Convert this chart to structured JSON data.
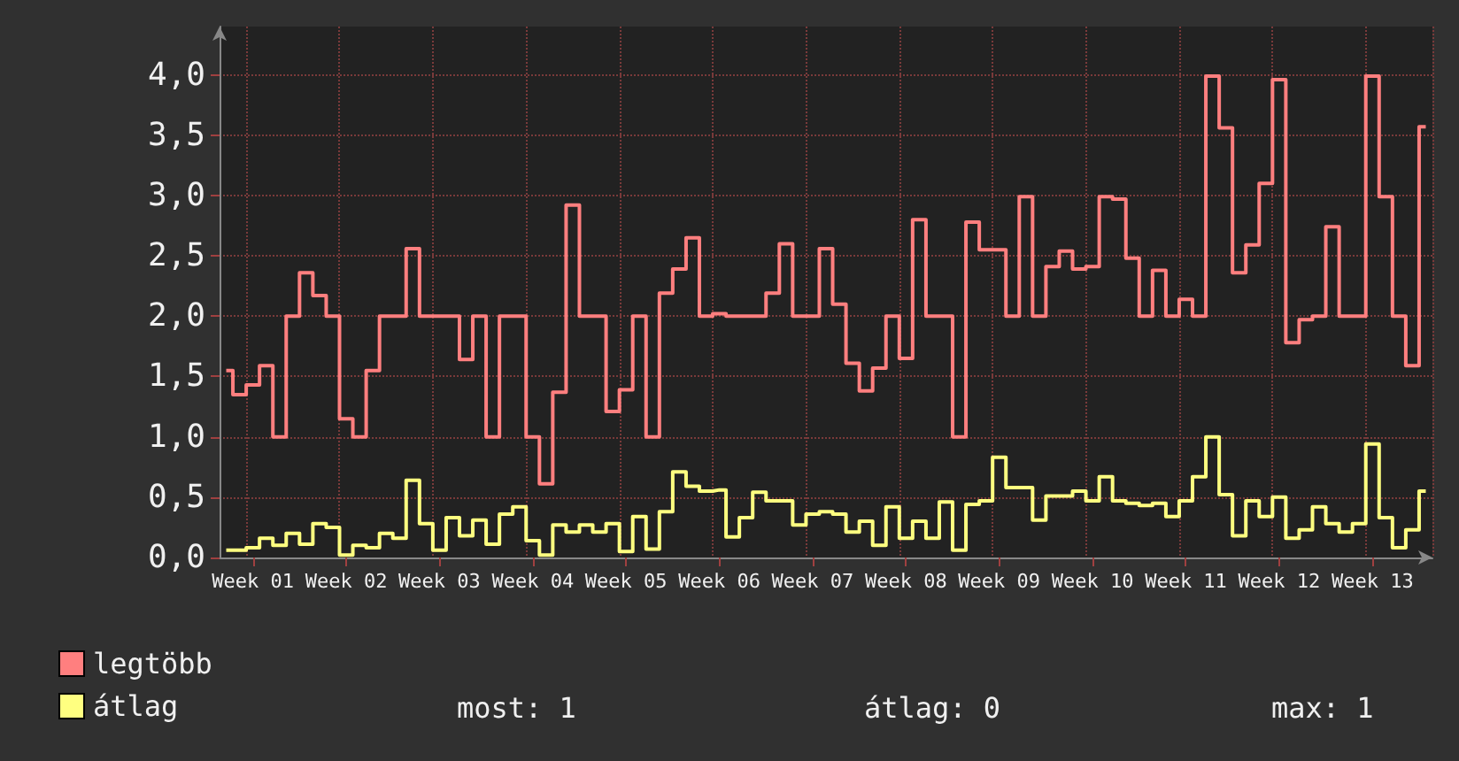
{
  "chart_data": {
    "type": "step",
    "categories": [
      null,
      null,
      "Week 01",
      null,
      null,
      null,
      null,
      null,
      null,
      "Week 02",
      null,
      null,
      null,
      null,
      null,
      null,
      "Week 03",
      null,
      null,
      null,
      null,
      null,
      null,
      "Week 04",
      null,
      null,
      null,
      null,
      null,
      null,
      "Week 05",
      null,
      null,
      null,
      null,
      null,
      null,
      "Week 06",
      null,
      null,
      null,
      null,
      null,
      null,
      "Week 07",
      null,
      null,
      null,
      null,
      null,
      null,
      "Week 08",
      null,
      null,
      null,
      null,
      null,
      null,
      "Week 09",
      null,
      null,
      null,
      null,
      null,
      null,
      "Week 10",
      null,
      null,
      null,
      null,
      null,
      null,
      "Week 11",
      null,
      null,
      null,
      null,
      null,
      null,
      "Week 12",
      null,
      null,
      null,
      null,
      null,
      null,
      "Week 13",
      null,
      null,
      null,
      null
    ],
    "series": [
      {
        "name": "legtöbb",
        "color": "#ff7f7f",
        "values": [
          1.55,
          1.35,
          1.43,
          1.59,
          1.0,
          2.0,
          2.36,
          2.17,
          2.0,
          1.15,
          1.0,
          1.55,
          2.0,
          2.0,
          2.56,
          2.0,
          2.0,
          2.0,
          1.64,
          2.0,
          1.0,
          2.0,
          2.0,
          1.0,
          0.61,
          1.37,
          2.92,
          2.0,
          2.0,
          1.21,
          1.39,
          2.0,
          1.0,
          2.19,
          2.39,
          2.65,
          2.0,
          2.02,
          2.0,
          2.0,
          2.0,
          2.19,
          2.6,
          2.0,
          2.0,
          2.56,
          2.1,
          1.61,
          1.38,
          1.57,
          2.0,
          1.65,
          2.8,
          2.0,
          2.0,
          1.0,
          2.78,
          2.55,
          2.55,
          2.0,
          2.99,
          2.0,
          2.41,
          2.54,
          2.39,
          2.41,
          2.99,
          2.97,
          2.48,
          2.0,
          2.38,
          2.0,
          2.14,
          2.0,
          3.99,
          3.56,
          2.36,
          2.59,
          3.1,
          3.96,
          1.78,
          1.97,
          2.0,
          2.74,
          2.0,
          2.0,
          3.99,
          2.99,
          2.0,
          1.59,
          3.57
        ]
      },
      {
        "name": "átlag",
        "color": "#ffff80",
        "values": [
          0.06,
          0.06,
          0.08,
          0.16,
          0.1,
          0.2,
          0.11,
          0.28,
          0.25,
          0.02,
          0.1,
          0.08,
          0.2,
          0.16,
          0.64,
          0.28,
          0.06,
          0.33,
          0.18,
          0.31,
          0.11,
          0.36,
          0.42,
          0.14,
          0.02,
          0.27,
          0.21,
          0.27,
          0.21,
          0.28,
          0.05,
          0.34,
          0.07,
          0.38,
          0.71,
          0.59,
          0.55,
          0.56,
          0.17,
          0.33,
          0.54,
          0.47,
          0.47,
          0.27,
          0.36,
          0.38,
          0.36,
          0.21,
          0.3,
          0.1,
          0.42,
          0.16,
          0.3,
          0.16,
          0.46,
          0.06,
          0.44,
          0.47,
          0.83,
          0.58,
          0.58,
          0.31,
          0.51,
          0.51,
          0.55,
          0.47,
          0.67,
          0.47,
          0.45,
          0.43,
          0.45,
          0.34,
          0.47,
          0.67,
          1.0,
          0.52,
          0.18,
          0.47,
          0.34,
          0.5,
          0.16,
          0.23,
          0.42,
          0.28,
          0.21,
          0.28,
          0.94,
          0.33,
          0.08,
          0.23,
          0.55
        ]
      }
    ],
    "ylim": [
      0,
      4.4
    ],
    "yticks": [
      {
        "value": 0,
        "label": "0,0"
      },
      {
        "value": 0.5,
        "label": "0,5"
      },
      {
        "value": 1,
        "label": "1,0"
      },
      {
        "value": 1.5,
        "label": "1,5"
      },
      {
        "value": 2,
        "label": "2,0"
      },
      {
        "value": 2.5,
        "label": "2,5"
      },
      {
        "value": 3,
        "label": "3,0"
      },
      {
        "value": 3.5,
        "label": "3,5"
      },
      {
        "value": 4,
        "label": "4,0"
      }
    ],
    "grid": true,
    "legend": "bottom left",
    "annotations": [
      "most: 1",
      "átlag: 0",
      "max: 1"
    ]
  }
}
